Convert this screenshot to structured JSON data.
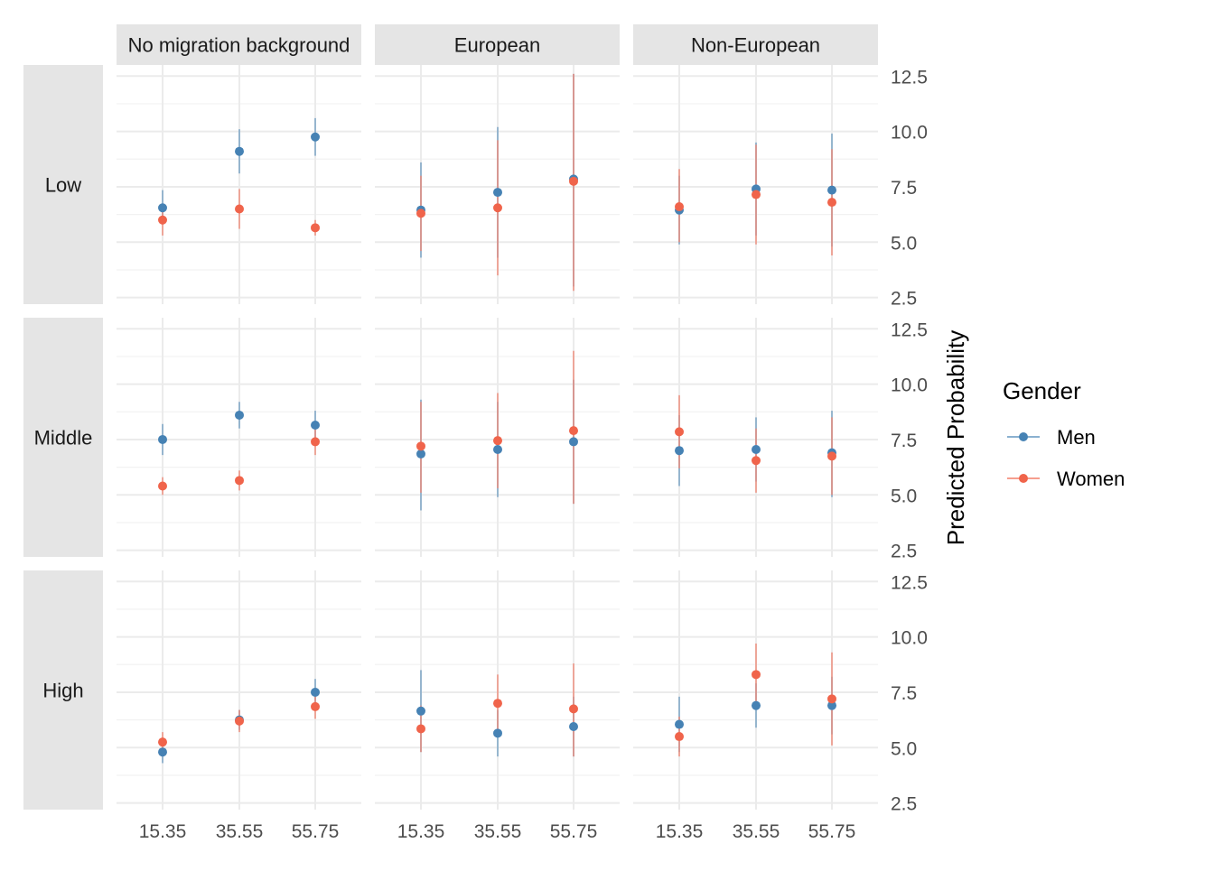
{
  "chart_data": {
    "type": "scatter",
    "facet_columns": [
      "No migration background",
      "European",
      "Non-European"
    ],
    "facet_rows": [
      "Low",
      "Middle",
      "High"
    ],
    "x": [
      15.35,
      35.55,
      55.75
    ],
    "x_tick_labels": [
      "15.35",
      "35.55",
      "55.75"
    ],
    "ylabel": "Predicted Probability",
    "ylim": [
      2.2,
      13.0
    ],
    "y_ticks": [
      2.5,
      5.0,
      7.5,
      10.0,
      12.5
    ],
    "y_tick_labels": [
      "2.5",
      "5.0",
      "7.5",
      "10.0",
      "12.5"
    ],
    "y_axis_position": "right",
    "grid": true,
    "legend": {
      "title": "Gender",
      "position": "right",
      "entries": [
        "Men",
        "Women"
      ]
    },
    "colors": {
      "Men": "#4682b4",
      "Women": "#f0644b"
    },
    "series": [
      {
        "name": "Men",
        "panels": [
          {
            "row": "Low",
            "col": "No migration background",
            "values": [
              6.55,
              9.1,
              9.75
            ],
            "lower": [
              5.8,
              8.1,
              8.9
            ],
            "upper": [
              7.35,
              10.1,
              10.6
            ]
          },
          {
            "row": "Low",
            "col": "European",
            "values": [
              6.45,
              7.25,
              7.85
            ],
            "lower": [
              4.3,
              4.3,
              3.0
            ],
            "upper": [
              8.6,
              10.2,
              12.6
            ]
          },
          {
            "row": "Low",
            "col": "Non-European",
            "values": [
              6.45,
              7.4,
              7.35
            ],
            "lower": [
              4.9,
              5.3,
              4.8
            ],
            "upper": [
              8.0,
              9.5,
              9.9
            ]
          },
          {
            "row": "Middle",
            "col": "No migration background",
            "values": [
              7.5,
              8.6,
              8.15
            ],
            "lower": [
              6.8,
              8.0,
              7.5
            ],
            "upper": [
              8.2,
              9.2,
              8.8
            ]
          },
          {
            "row": "Middle",
            "col": "European",
            "values": [
              6.85,
              7.05,
              7.4
            ],
            "lower": [
              4.3,
              4.9,
              4.6
            ],
            "upper": [
              9.3,
              9.2,
              10.2
            ]
          },
          {
            "row": "Middle",
            "col": "Non-European",
            "values": [
              7.0,
              7.05,
              6.9
            ],
            "lower": [
              5.4,
              5.6,
              4.9
            ],
            "upper": [
              8.6,
              8.5,
              8.8
            ]
          },
          {
            "row": "High",
            "col": "No migration background",
            "values": [
              4.8,
              6.25,
              7.5
            ],
            "lower": [
              4.3,
              5.8,
              6.9
            ],
            "upper": [
              5.3,
              6.7,
              8.1
            ]
          },
          {
            "row": "High",
            "col": "European",
            "values": [
              6.65,
              5.65,
              5.95
            ],
            "lower": [
              4.8,
              4.6,
              4.6
            ],
            "upper": [
              8.5,
              6.7,
              7.3
            ]
          },
          {
            "row": "High",
            "col": "Non-European",
            "values": [
              6.05,
              6.9,
              6.9
            ],
            "lower": [
              4.8,
              5.9,
              5.6
            ],
            "upper": [
              7.3,
              7.9,
              8.2
            ]
          }
        ]
      },
      {
        "name": "Women",
        "panels": [
          {
            "row": "Low",
            "col": "No migration background",
            "values": [
              6.0,
              6.5,
              5.65
            ],
            "lower": [
              5.3,
              5.6,
              5.3
            ],
            "upper": [
              6.7,
              7.4,
              6.0
            ]
          },
          {
            "row": "Low",
            "col": "European",
            "values": [
              6.3,
              6.55,
              7.75
            ],
            "lower": [
              4.6,
              3.5,
              2.8
            ],
            "upper": [
              8.0,
              9.6,
              12.6
            ]
          },
          {
            "row": "Low",
            "col": "Non-European",
            "values": [
              6.6,
              7.15,
              6.8
            ],
            "lower": [
              5.0,
              4.9,
              4.4
            ],
            "upper": [
              8.3,
              9.4,
              9.2
            ]
          },
          {
            "row": "Middle",
            "col": "No migration background",
            "values": [
              5.4,
              5.65,
              7.4
            ],
            "lower": [
              5.0,
              5.2,
              6.8
            ],
            "upper": [
              5.8,
              6.1,
              8.0
            ]
          },
          {
            "row": "Middle",
            "col": "European",
            "values": [
              7.2,
              7.45,
              7.9
            ],
            "lower": [
              5.1,
              5.3,
              4.6
            ],
            "upper": [
              9.2,
              9.6,
              11.5
            ]
          },
          {
            "row": "Middle",
            "col": "Non-European",
            "values": [
              7.85,
              6.55,
              6.75
            ],
            "lower": [
              6.2,
              5.1,
              5.0
            ],
            "upper": [
              9.5,
              8.0,
              8.5
            ]
          },
          {
            "row": "High",
            "col": "No migration background",
            "values": [
              5.25,
              6.2,
              6.85
            ],
            "lower": [
              4.8,
              5.7,
              6.3
            ],
            "upper": [
              5.7,
              6.7,
              7.4
            ]
          },
          {
            "row": "High",
            "col": "European",
            "values": [
              5.85,
              7.0,
              6.75
            ],
            "lower": [
              4.8,
              5.6,
              4.6
            ],
            "upper": [
              6.9,
              8.3,
              8.8
            ]
          },
          {
            "row": "High",
            "col": "Non-European",
            "values": [
              5.5,
              8.3,
              7.2
            ],
            "lower": [
              4.6,
              6.9,
              5.1
            ],
            "upper": [
              6.4,
              9.7,
              9.3
            ]
          }
        ]
      }
    ]
  }
}
